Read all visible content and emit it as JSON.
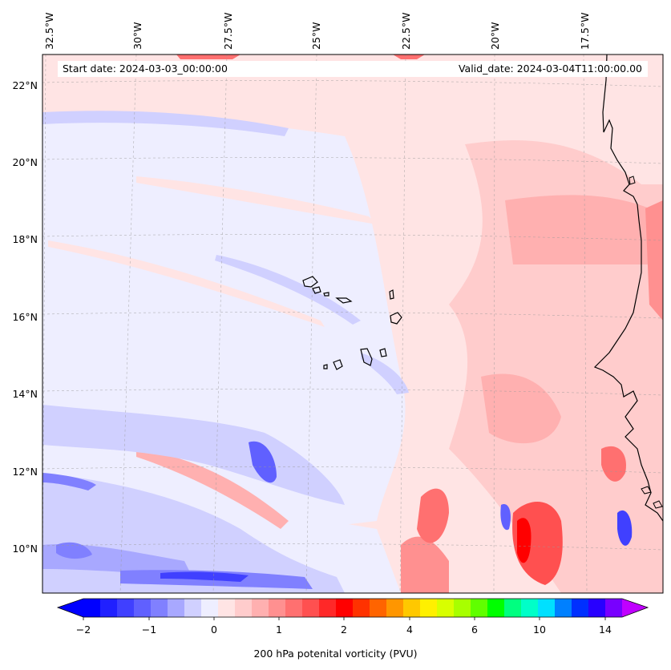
{
  "map": {
    "start_label": "Start date: 2024-03-03_00:00:00",
    "valid_label": "Valid_date: 2024-03-04T11:00:00.00",
    "longitude_labels": [
      "32.5°W",
      "30°W",
      "27.5°W",
      "25°W",
      "22.5°W",
      "20°W",
      "17.5°W"
    ],
    "latitude_labels": [
      "22°N",
      "20°N",
      "18°N",
      "16°N",
      "14°N",
      "12°N",
      "10°N"
    ],
    "regions": [
      "Cabo Verde islands",
      "West African coast"
    ]
  },
  "colorbar": {
    "title": "200 hPa potenital vorticity (PVU)",
    "tick_labels": [
      "−2",
      "−1",
      "0",
      "1",
      "2",
      "4",
      "6",
      "10",
      "14"
    ],
    "colors": [
      "#0000ff",
      "#2020ff",
      "#4040ff",
      "#6060ff",
      "#8080ff",
      "#a8a8ff",
      "#d0d0ff",
      "#eeeeff",
      "#ffe4e4",
      "#ffcccc",
      "#ffb0b0",
      "#ff9090",
      "#ff7070",
      "#ff5050",
      "#ff2828",
      "#ff0000",
      "#ff3200",
      "#ff6400",
      "#ff9600",
      "#ffc800",
      "#fff000",
      "#d8ff00",
      "#a8ff00",
      "#60ff00",
      "#00ff00",
      "#00ff80",
      "#00ffc8",
      "#00e0ff",
      "#0080ff",
      "#0030ff",
      "#2800ff",
      "#7800ff"
    ],
    "under_color": "#0000ff",
    "over_color": "#c000ff"
  }
}
